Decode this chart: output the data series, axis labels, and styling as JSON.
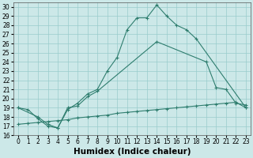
{
  "xlabel": "Humidex (Indice chaleur)",
  "xlim": [
    -0.5,
    23.5
  ],
  "ylim": [
    16,
    30.5
  ],
  "yticks": [
    16,
    17,
    18,
    19,
    20,
    21,
    22,
    23,
    24,
    25,
    26,
    27,
    28,
    29,
    30
  ],
  "xticks": [
    0,
    1,
    2,
    3,
    4,
    5,
    6,
    7,
    8,
    9,
    10,
    11,
    12,
    13,
    14,
    15,
    16,
    17,
    18,
    19,
    20,
    21,
    22,
    23
  ],
  "bg_color": "#cce8e8",
  "line_color": "#2e7d6e",
  "grid_color": "#99cccc",
  "line1_x": [
    0,
    1,
    2,
    3,
    4,
    5,
    6,
    7,
    8,
    9,
    10,
    11,
    12,
    13,
    14,
    15,
    16,
    17,
    18,
    23
  ],
  "line1_y": [
    19.0,
    18.8,
    17.8,
    17.0,
    16.8,
    18.8,
    19.5,
    20.5,
    21.0,
    23.0,
    24.5,
    27.5,
    28.8,
    28.8,
    30.2,
    29.0,
    28.0,
    27.5,
    26.5,
    19.0
  ],
  "line2_x": [
    0,
    2,
    3,
    4,
    5,
    6,
    7,
    8,
    14,
    19,
    20,
    21,
    22,
    23
  ],
  "line2_y": [
    19.0,
    18.0,
    17.2,
    16.8,
    19.0,
    19.2,
    20.2,
    20.8,
    26.2,
    24.0,
    21.2,
    21.0,
    19.5,
    19.3
  ],
  "line3_x": [
    0,
    1,
    2,
    3,
    4,
    5,
    6,
    7,
    8,
    9,
    10,
    11,
    12,
    13,
    14,
    15,
    16,
    17,
    18,
    19,
    20,
    21,
    22,
    23
  ],
  "line3_y": [
    17.2,
    17.3,
    17.4,
    17.5,
    17.6,
    17.7,
    17.9,
    18.0,
    18.1,
    18.2,
    18.4,
    18.5,
    18.6,
    18.7,
    18.8,
    18.9,
    19.0,
    19.1,
    19.2,
    19.3,
    19.4,
    19.5,
    19.6,
    19.0
  ],
  "tick_fontsize": 5.5,
  "xlabel_fontsize": 7.5
}
